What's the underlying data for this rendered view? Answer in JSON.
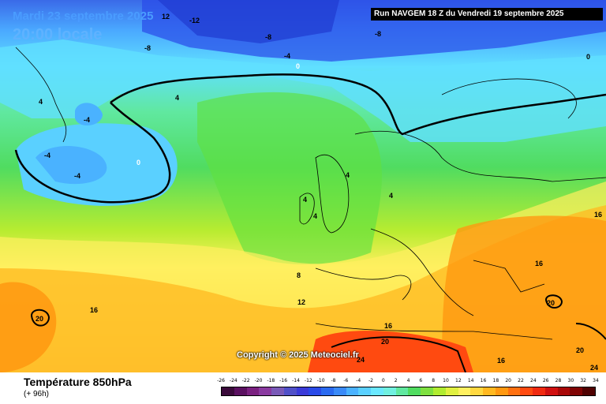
{
  "header": {
    "date": "Mardi 23 septembre 2025",
    "time": "20:00 locale",
    "run": "Run NAVGEM 18 Z du Vendredi 19 septembre 2025"
  },
  "copyright": "Copyright © 2025 Meteociel.fr",
  "footer": {
    "variable": "Température 850hPa",
    "lead": "(+ 96h)"
  },
  "legend": {
    "labels": [
      "-26",
      "-24",
      "-22",
      "-20",
      "-18",
      "-16",
      "-14",
      "-12",
      "-10",
      "-8",
      "-6",
      "-4",
      "-2",
      "0",
      "2",
      "4",
      "6",
      "8",
      "10",
      "12",
      "14",
      "16",
      "18",
      "20",
      "22",
      "24",
      "26",
      "28",
      "30",
      "32",
      "34"
    ],
    "colors": [
      "#3a0a3a",
      "#5a1060",
      "#7a2080",
      "#8a3aa0",
      "#7a5ab8",
      "#5050c8",
      "#3a3ad8",
      "#2a4ae8",
      "#2a6af0",
      "#3a8af8",
      "#4ab2ff",
      "#5ad0ff",
      "#6ae8ff",
      "#70f0e0",
      "#60e8a0",
      "#50dc60",
      "#7ee040",
      "#b0ec30",
      "#e0f040",
      "#fff060",
      "#ffd840",
      "#ffb820",
      "#ff9810",
      "#ff7010",
      "#ff4a10",
      "#f02a10",
      "#d01010",
      "#a80808",
      "#800404",
      "#500202"
    ]
  },
  "isotherm_labels": [
    "12",
    "-12",
    "-8",
    "-8",
    "-8",
    "-4",
    "0",
    "0",
    "4",
    "4",
    "-4",
    "-4",
    "-4",
    "0",
    "4",
    "4",
    "4",
    "4",
    "8",
    "12",
    "16",
    "16",
    "20",
    "20",
    "16",
    "16",
    "20",
    "24",
    "24",
    "20",
    "16"
  ]
}
